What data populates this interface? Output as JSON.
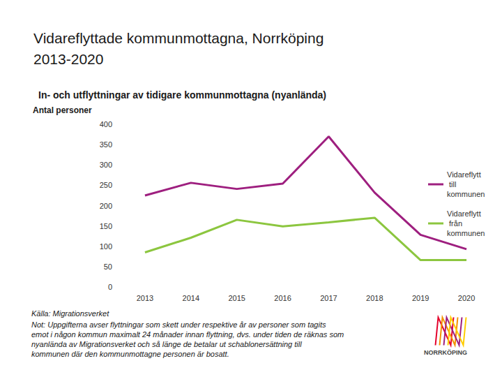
{
  "chart_data": {
    "type": "line",
    "title": "Vidareflyttade kommunmottagna, Norrköping 2013-2020",
    "subtitle": "In- och utflyttningar av tidigare kommunmottagna (nyanlända)",
    "y_label": "Antal personer",
    "categories": [
      "2013",
      "2014",
      "2015",
      "2016",
      "2017",
      "2018",
      "2019",
      "2020"
    ],
    "series": [
      {
        "name": "Vidareflytt till kommunen",
        "color": "#9e1f7f",
        "values": [
          225,
          256,
          241,
          254,
          370,
          232,
          128,
          93
        ]
      },
      {
        "name": "Vidareflytt från kommunen",
        "color": "#8cc63f",
        "values": [
          85,
          121,
          165,
          149,
          159,
          170,
          66,
          66
        ]
      }
    ],
    "ylim": [
      0,
      400
    ],
    "yticks": [
      0,
      50,
      100,
      150,
      200,
      250,
      300,
      350,
      400
    ],
    "grid": false,
    "legend": "right",
    "source": "Källa: Migrationsverket",
    "note": "Not: Uppgifterna avser flyttningar som skett under respektive år av personer som tagits emot i någon kommun maximalt 24 månader innan flyttning, dvs. under tiden de räknas som nyanlända av Migrationsverket och så länge de betalar ut schablonersättning till kommunen där den kommunmottagne personen är bosatt.",
    "logo_text": "NORRKÖPING"
  }
}
